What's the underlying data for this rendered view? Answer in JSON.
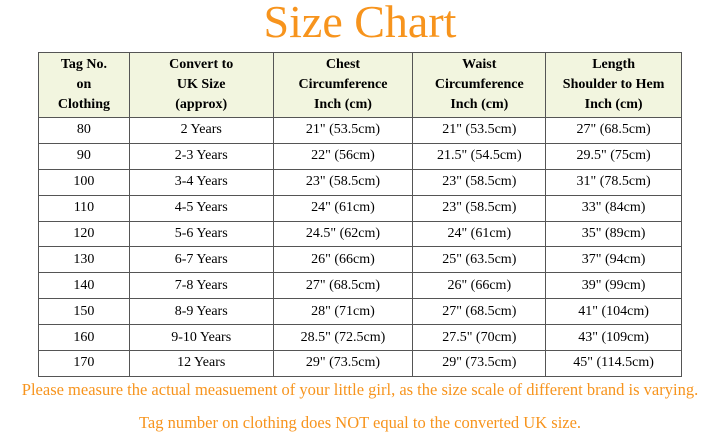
{
  "title": "Size Chart",
  "table": {
    "header": [
      "Tag No.\non\nClothing",
      "Convert to\nUK Size\n(approx)",
      "Chest\nCircumference\nInch (cm)",
      "Waist\nCircumference\nInch (cm)",
      "Length\nShoulder to Hem\nInch (cm)"
    ],
    "rows": [
      [
        "80",
        "2 Years",
        "21\" (53.5cm)",
        "21\" (53.5cm)",
        "27\" (68.5cm)"
      ],
      [
        "90",
        "2-3 Years",
        "22\" (56cm)",
        "21.5\" (54.5cm)",
        "29.5\" (75cm)"
      ],
      [
        "100",
        "3-4 Years",
        "23\" (58.5cm)",
        "23\" (58.5cm)",
        "31\" (78.5cm)"
      ],
      [
        "110",
        "4-5 Years",
        "24\" (61cm)",
        "23\" (58.5cm)",
        "33\" (84cm)"
      ],
      [
        "120",
        "5-6 Years",
        "24.5\" (62cm)",
        "24\" (61cm)",
        "35\" (89cm)"
      ],
      [
        "130",
        "6-7 Years",
        "26\" (66cm)",
        "25\" (63.5cm)",
        "37\" (94cm)"
      ],
      [
        "140",
        "7-8 Years",
        "27\" (68.5cm)",
        "26\" (66cm)",
        "39\" (99cm)"
      ],
      [
        "150",
        "8-9 Years",
        "28\" (71cm)",
        "27\" (68.5cm)",
        "41\" (104cm)"
      ],
      [
        "160",
        "9-10 Years",
        "28.5\" (72.5cm)",
        "27.5\" (70cm)",
        "43\" (109cm)"
      ],
      [
        "170",
        "12 Years",
        "29\" (73.5cm)",
        "29\" (73.5cm)",
        "45\" (114.5cm)"
      ]
    ]
  },
  "notes": [
    "Please measure the actual measuement of your little girl, as the size scale of different brand is varying.",
    "Tag number on clothing does NOT equal to the converted UK size."
  ]
}
